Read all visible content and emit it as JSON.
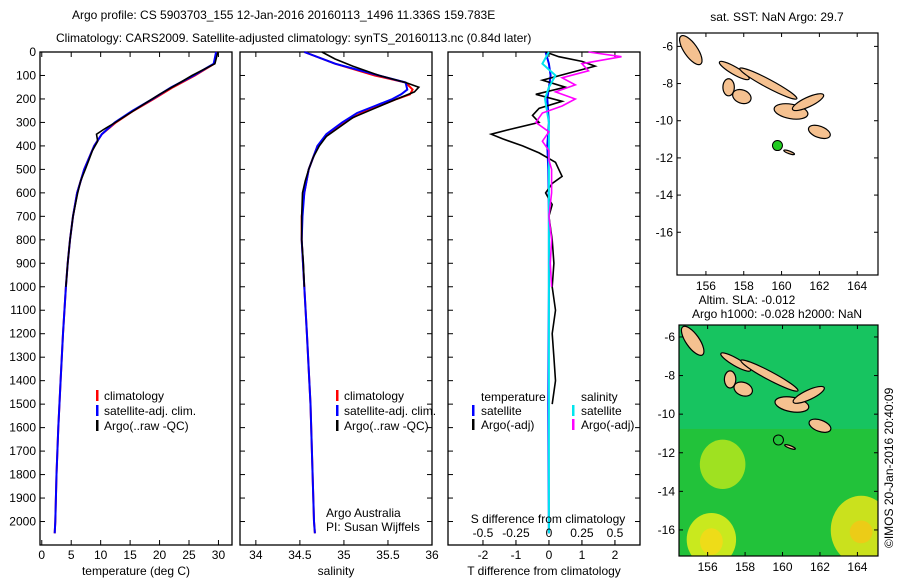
{
  "title": {
    "line1": "Argo profile: CS 5903703_155 12-Jan-2016 20160113_1496 11.336S 159.783E",
    "line2": "Climatology: CARS2009. Satellite-adjusted climatology: synTS_20160113.nc (0.84d later)"
  },
  "copyright": "©IMOS 20-Jan-2016 20:40:09",
  "colors": {
    "climatology": "#ff0000",
    "satellite": "#0000ff",
    "argo": "#000000",
    "sal_satellite": "#00e5ee",
    "sal_argo": "#ff00ff"
  },
  "chart_data": [
    {
      "type": "line",
      "name": "temperature",
      "xlabel": "temperature (deg C)",
      "xlim": [
        -0.3,
        32.3
      ],
      "ylim": [
        0,
        2100
      ],
      "xticks": [
        0,
        5,
        10,
        15,
        20,
        25,
        30
      ],
      "yticks": [
        0,
        100,
        200,
        300,
        400,
        500,
        600,
        700,
        800,
        900,
        1000,
        1100,
        1200,
        1300,
        1400,
        1500,
        1600,
        1700,
        1800,
        1900,
        2000
      ],
      "legend": [
        "climatology",
        "satellite-adj. clim.",
        "Argo(..raw -QC)"
      ],
      "legend_position": "bottom-right",
      "series": [
        {
          "name": "climatology",
          "color": "#ff0000",
          "depth": [
            0,
            50,
            100,
            150,
            200,
            250,
            300,
            350,
            400,
            500,
            600,
            700,
            800,
            900,
            1000,
            1200,
            1400,
            1600,
            1800,
            2000,
            2050
          ],
          "values": [
            29.8,
            29.3,
            26,
            22.3,
            19,
            15.6,
            12.6,
            10.2,
            8.9,
            7.2,
            6,
            5.3,
            4.8,
            4.4,
            4.1,
            3.6,
            3.2,
            2.8,
            2.5,
            2.3,
            2.2
          ]
        },
        {
          "name": "satellite-adj. clim.",
          "color": "#0000ff",
          "depth": [
            0,
            50,
            100,
            150,
            200,
            250,
            300,
            350,
            400,
            500,
            600,
            700,
            800,
            900,
            1000,
            1200,
            1400,
            1600,
            1800,
            2000,
            2050
          ],
          "values": [
            29.6,
            29.2,
            25.8,
            22,
            18.8,
            15.4,
            12.4,
            10.2,
            8.9,
            7.2,
            6,
            5.3,
            4.8,
            4.4,
            4.1,
            3.6,
            3.2,
            2.8,
            2.5,
            2.3,
            2.2
          ]
        },
        {
          "name": "Argo(..raw -QC)",
          "color": "#000000",
          "depth": [
            0,
            20,
            50,
            100,
            130,
            180,
            220,
            260,
            300,
            330,
            350,
            380,
            420,
            460,
            500,
            550,
            600,
            700,
            800,
            900,
            1000
          ],
          "values": [
            29.9,
            29.7,
            29.4,
            25.5,
            23.5,
            20,
            17.5,
            15,
            12.5,
            10.5,
            9.3,
            9.5,
            8.6,
            8,
            7.4,
            6.6,
            6.1,
            5.3,
            4.8,
            4.4,
            4.1
          ]
        }
      ]
    },
    {
      "type": "line",
      "name": "salinity",
      "xlabel": "salinity",
      "xlim": [
        33.82,
        36
      ],
      "ylim": [
        0,
        2100
      ],
      "xticks": [
        34,
        34.5,
        35,
        35.5,
        36
      ],
      "legend": [
        "climatology",
        "satellite-adj. clim.",
        "Argo(..raw -QC)"
      ],
      "legend_position": "bottom-right",
      "annotation": [
        "Argo Australia",
        "PI: Susan Wijffels"
      ],
      "series": [
        {
          "name": "climatology",
          "color": "#ff0000",
          "depth": [
            0,
            50,
            100,
            130,
            160,
            180,
            200,
            230,
            260,
            300,
            350,
            400,
            500,
            600,
            700,
            800,
            1000,
            1200,
            1500,
            2000,
            2050
          ],
          "values": [
            34.55,
            34.9,
            35.35,
            35.7,
            35.78,
            35.75,
            35.6,
            35.4,
            35.2,
            35.0,
            34.82,
            34.7,
            34.6,
            34.55,
            34.52,
            34.52,
            34.55,
            34.58,
            34.62,
            34.66,
            34.67
          ]
        },
        {
          "name": "satellite-adj. clim.",
          "color": "#0000ff",
          "depth": [
            0,
            50,
            100,
            130,
            160,
            180,
            200,
            230,
            260,
            300,
            350,
            400,
            500,
            600,
            700,
            800,
            1000,
            1200,
            1500,
            2000,
            2050
          ],
          "values": [
            34.55,
            34.9,
            35.4,
            35.7,
            35.72,
            35.65,
            35.55,
            35.35,
            35.15,
            34.98,
            34.8,
            34.7,
            34.6,
            34.55,
            34.53,
            34.52,
            34.55,
            34.58,
            34.62,
            34.66,
            34.67
          ]
        },
        {
          "name": "Argo(..raw -QC)",
          "color": "#000000",
          "depth": [
            0,
            30,
            60,
            100,
            130,
            150,
            170,
            200,
            240,
            280,
            320,
            360,
            400,
            450,
            500,
            550,
            600,
            700,
            800,
            900,
            1000
          ],
          "values": [
            34.75,
            34.9,
            35.1,
            35.4,
            35.7,
            35.85,
            35.8,
            35.6,
            35.35,
            35.1,
            34.95,
            34.8,
            34.72,
            34.65,
            34.6,
            34.56,
            34.53,
            34.52,
            34.52,
            34.54,
            34.55
          ]
        }
      ]
    },
    {
      "type": "line",
      "name": "difference",
      "xlabel": "T difference from climatology",
      "x2label": "S difference from climatology",
      "xlim": [
        -3.06,
        2.76
      ],
      "x2lim": [
        -0.765,
        0.69
      ],
      "ylim": [
        0,
        2100
      ],
      "xticks": [
        -2,
        -1,
        0,
        1,
        2
      ],
      "x2ticks": [
        -0.5,
        -0.25,
        0,
        0.25,
        0.5
      ],
      "x2ticklabels": [
        "-0.5",
        "-0.25",
        "0",
        "0.25",
        "0.5"
      ],
      "legend_titles": [
        "temperature",
        "salinity"
      ],
      "legend": [
        "satellite",
        "Argo(-adj)",
        "satellite",
        "Argo(-adj)"
      ],
      "legend_position": "bottom",
      "series": [
        {
          "name": "T satellite",
          "axis": "T",
          "color": "#0000ff",
          "depth": [
            0,
            50,
            100,
            200,
            300,
            400,
            500,
            700,
            1000,
            1500,
            2050
          ],
          "values": [
            -0.1,
            0,
            0.05,
            -0.05,
            0,
            -0.05,
            -0.02,
            0,
            0,
            -0.02,
            0
          ]
        },
        {
          "name": "T Argo(-adj)",
          "axis": "T",
          "color": "#000000",
          "depth": [
            0,
            20,
            40,
            60,
            90,
            120,
            150,
            180,
            210,
            240,
            270,
            300,
            330,
            350,
            370,
            400,
            430,
            470,
            500,
            530,
            560,
            600,
            650,
            700,
            800,
            900,
            1000,
            1100,
            1200,
            1300,
            1400,
            1500
          ],
          "values": [
            -0.1,
            0.3,
            1,
            1.4,
            0.6,
            -0.2,
            0.5,
            -0.4,
            0.4,
            -0.3,
            -0.5,
            -0.3,
            -1.2,
            -1.75,
            -1.4,
            -0.8,
            -0.3,
            0.2,
            0.3,
            0.4,
            0.1,
            -0.1,
            0.1,
            0,
            0.1,
            0.15,
            0.1,
            0.2,
            0.1,
            0.15,
            0.2,
            0.1
          ]
        },
        {
          "name": "S satellite",
          "axis": "S",
          "color": "#00e5ee",
          "depth": [
            0,
            50,
            100,
            150,
            200,
            300,
            400,
            600,
            1000,
            1500,
            2050
          ],
          "values": [
            0.0,
            -0.05,
            0.05,
            0.0,
            -0.03,
            0.0,
            0.0,
            0.0,
            0.0,
            0.0,
            0.0
          ]
        },
        {
          "name": "S Argo(-adj)",
          "axis": "S",
          "color": "#ff00ff",
          "depth": [
            0,
            20,
            50,
            80,
            110,
            140,
            170,
            200,
            230,
            260,
            300,
            340,
            380,
            420,
            460,
            500,
            600,
            700,
            800,
            900,
            1000
          ],
          "values": [
            0.3,
            0.55,
            0.25,
            0.3,
            0.1,
            0.2,
            0.05,
            0.2,
            0.1,
            -0.05,
            -0.1,
            0.0,
            -0.05,
            0.0,
            0.0,
            0.02,
            0.02,
            0.0,
            0.02,
            0.01,
            0.02
          ]
        }
      ]
    },
    {
      "type": "heatmap",
      "name": "sst-map",
      "title": "sat. SST: NaN  Argo: 29.7",
      "xlim": [
        154.47,
        165.1
      ],
      "ylim": [
        -18.3,
        -5.28
      ],
      "xticks": [
        156,
        158,
        160,
        162,
        164
      ],
      "yticks": [
        -6,
        -8,
        -10,
        -12,
        -14,
        -16
      ],
      "marker": {
        "lon": 159.783,
        "lat": -11.336
      }
    },
    {
      "type": "heatmap",
      "name": "sla-map",
      "title": "Altim. SLA: -0.012",
      "subtitle": "Argo h1000: -0.028 h2000: NaN",
      "xlim": [
        154.47,
        165.1
      ],
      "ylim": [
        -17.35,
        -5.38
      ],
      "xticks": [
        156,
        158,
        160,
        162,
        164
      ],
      "yticks": [
        -6,
        -8,
        -10,
        -12,
        -14,
        -16
      ],
      "marker": {
        "lon": 159.783,
        "lat": -11.336
      }
    }
  ]
}
